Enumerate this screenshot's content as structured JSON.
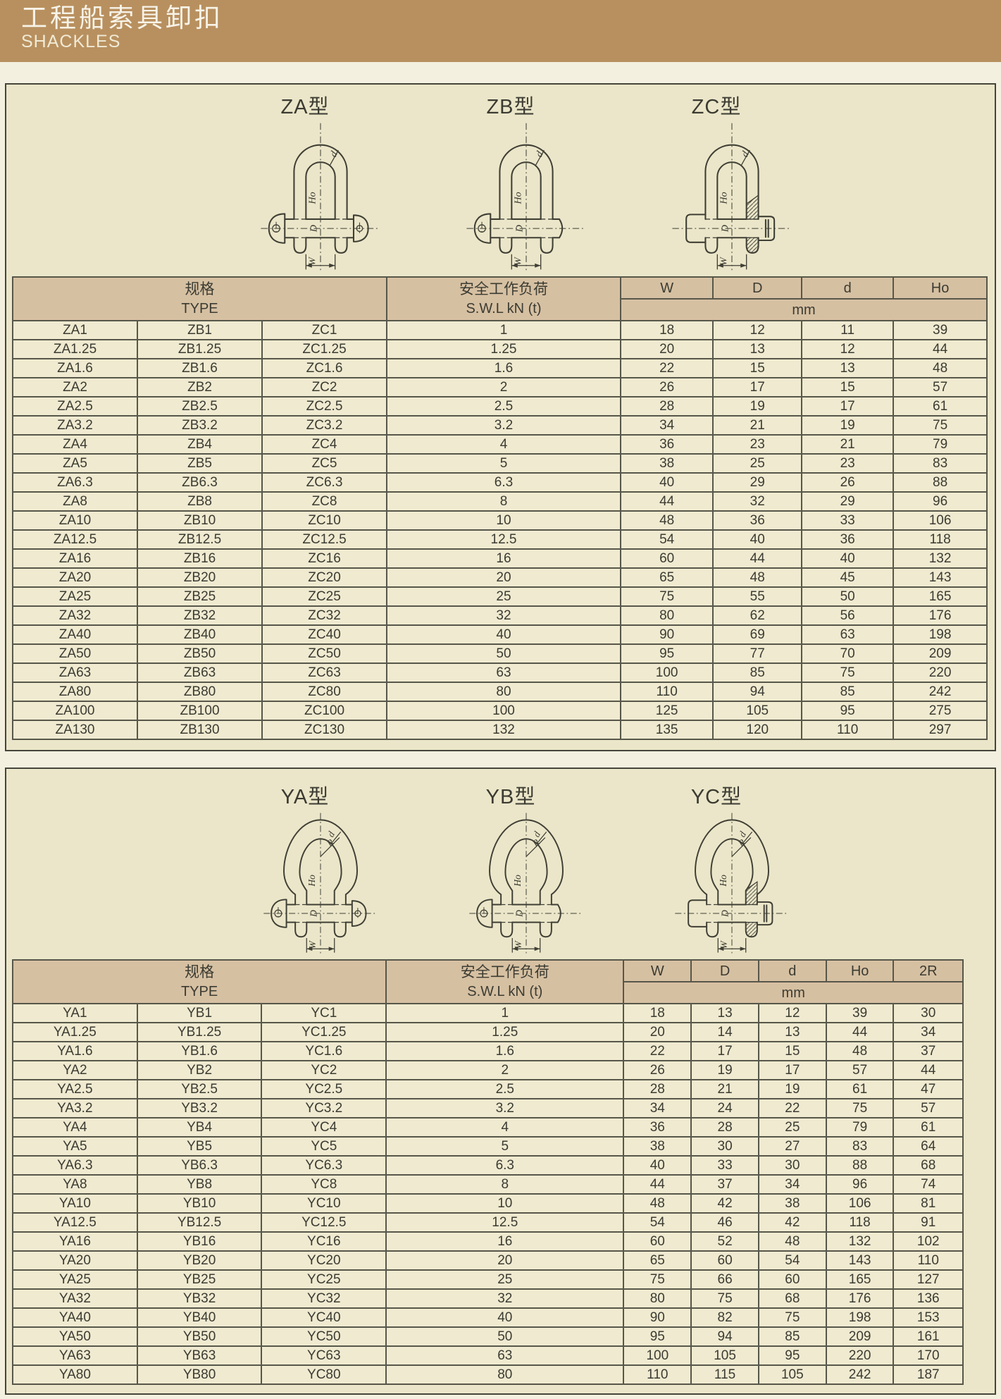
{
  "banner": {
    "title_zh": "工程船索具卸扣",
    "title_en": "SHACKLES"
  },
  "colors": {
    "banner_bg": "#b8905f",
    "panel_bg": "#ebe6c9",
    "table_header_bg": "#d6c0a2",
    "row_bg": "#efead0",
    "grid": "#57574a"
  },
  "section_d": {
    "figures": [
      "ZA型",
      "ZB型",
      "ZC型"
    ],
    "dim_labels": {
      "d": "d",
      "ho": "Ho",
      "pin": "D",
      "width": "W"
    },
    "table": {
      "spec_zh": "规格",
      "spec_en": "TYPE",
      "swl_zh": "安全工作负荷",
      "swl_en": "S.W.L  kN (t)",
      "unit": "mm",
      "dim_cols": [
        "W",
        "D",
        "d",
        "Ho"
      ],
      "rows": [
        [
          "ZA1",
          "ZB1",
          "ZC1",
          "1",
          "18",
          "12",
          "11",
          "39"
        ],
        [
          "ZA1.25",
          "ZB1.25",
          "ZC1.25",
          "1.25",
          "20",
          "13",
          "12",
          "44"
        ],
        [
          "ZA1.6",
          "ZB1.6",
          "ZC1.6",
          "1.6",
          "22",
          "15",
          "13",
          "48"
        ],
        [
          "ZA2",
          "ZB2",
          "ZC2",
          "2",
          "26",
          "17",
          "15",
          "57"
        ],
        [
          "ZA2.5",
          "ZB2.5",
          "ZC2.5",
          "2.5",
          "28",
          "19",
          "17",
          "61"
        ],
        [
          "ZA3.2",
          "ZB3.2",
          "ZC3.2",
          "3.2",
          "34",
          "21",
          "19",
          "75"
        ],
        [
          "ZA4",
          "ZB4",
          "ZC4",
          "4",
          "36",
          "23",
          "21",
          "79"
        ],
        [
          "ZA5",
          "ZB5",
          "ZC5",
          "5",
          "38",
          "25",
          "23",
          "83"
        ],
        [
          "ZA6.3",
          "ZB6.3",
          "ZC6.3",
          "6.3",
          "40",
          "29",
          "26",
          "88"
        ],
        [
          "ZA8",
          "ZB8",
          "ZC8",
          "8",
          "44",
          "32",
          "29",
          "96"
        ],
        [
          "ZA10",
          "ZB10",
          "ZC10",
          "10",
          "48",
          "36",
          "33",
          "106"
        ],
        [
          "ZA12.5",
          "ZB12.5",
          "ZC12.5",
          "12.5",
          "54",
          "40",
          "36",
          "118"
        ],
        [
          "ZA16",
          "ZB16",
          "ZC16",
          "16",
          "60",
          "44",
          "40",
          "132"
        ],
        [
          "ZA20",
          "ZB20",
          "ZC20",
          "20",
          "65",
          "48",
          "45",
          "143"
        ],
        [
          "ZA25",
          "ZB25",
          "ZC25",
          "25",
          "75",
          "55",
          "50",
          "165"
        ],
        [
          "ZA32",
          "ZB32",
          "ZC32",
          "32",
          "80",
          "62",
          "56",
          "176"
        ],
        [
          "ZA40",
          "ZB40",
          "ZC40",
          "40",
          "90",
          "69",
          "63",
          "198"
        ],
        [
          "ZA50",
          "ZB50",
          "ZC50",
          "50",
          "95",
          "77",
          "70",
          "209"
        ],
        [
          "ZA63",
          "ZB63",
          "ZC63",
          "63",
          "100",
          "85",
          "75",
          "220"
        ],
        [
          "ZA80",
          "ZB80",
          "ZC80",
          "80",
          "110",
          "94",
          "85",
          "242"
        ],
        [
          "ZA100",
          "ZB100",
          "ZC100",
          "100",
          "125",
          "105",
          "95",
          "275"
        ],
        [
          "ZA130",
          "ZB130",
          "ZC130",
          "132",
          "135",
          "120",
          "110",
          "297"
        ]
      ]
    }
  },
  "section_bow": {
    "figures": [
      "YA型",
      "YB型",
      "YC型"
    ],
    "dim_labels": {
      "d": "d",
      "ho": "Ho",
      "pin": "D",
      "width": "W",
      "radius": "R"
    },
    "table": {
      "spec_zh": "规格",
      "spec_en": "TYPE",
      "swl_zh": "安全工作负荷",
      "swl_en": "S.W.L  kN (t)",
      "unit": "mm",
      "dim_cols": [
        "W",
        "D",
        "d",
        "Ho",
        "2R"
      ],
      "rows": [
        [
          "YA1",
          "YB1",
          "YC1",
          "1",
          "18",
          "13",
          "12",
          "39",
          "30"
        ],
        [
          "YA1.25",
          "YB1.25",
          "YC1.25",
          "1.25",
          "20",
          "14",
          "13",
          "44",
          "34"
        ],
        [
          "YA1.6",
          "YB1.6",
          "YC1.6",
          "1.6",
          "22",
          "17",
          "15",
          "48",
          "37"
        ],
        [
          "YA2",
          "YB2",
          "YC2",
          "2",
          "26",
          "19",
          "17",
          "57",
          "44"
        ],
        [
          "YA2.5",
          "YB2.5",
          "YC2.5",
          "2.5",
          "28",
          "21",
          "19",
          "61",
          "47"
        ],
        [
          "YA3.2",
          "YB3.2",
          "YC3.2",
          "3.2",
          "34",
          "24",
          "22",
          "75",
          "57"
        ],
        [
          "YA4",
          "YB4",
          "YC4",
          "4",
          "36",
          "28",
          "25",
          "79",
          "61"
        ],
        [
          "YA5",
          "YB5",
          "YC5",
          "5",
          "38",
          "30",
          "27",
          "83",
          "64"
        ],
        [
          "YA6.3",
          "YB6.3",
          "YC6.3",
          "6.3",
          "40",
          "33",
          "30",
          "88",
          "68"
        ],
        [
          "YA8",
          "YB8",
          "YC8",
          "8",
          "44",
          "37",
          "34",
          "96",
          "74"
        ],
        [
          "YA10",
          "YB10",
          "YC10",
          "10",
          "48",
          "42",
          "38",
          "106",
          "81"
        ],
        [
          "YA12.5",
          "YB12.5",
          "YC12.5",
          "12.5",
          "54",
          "46",
          "42",
          "118",
          "91"
        ],
        [
          "YA16",
          "YB16",
          "YC16",
          "16",
          "60",
          "52",
          "48",
          "132",
          "102"
        ],
        [
          "YA20",
          "YB20",
          "YC20",
          "20",
          "65",
          "60",
          "54",
          "143",
          "110"
        ],
        [
          "YA25",
          "YB25",
          "YC25",
          "25",
          "75",
          "66",
          "60",
          "165",
          "127"
        ],
        [
          "YA32",
          "YB32",
          "YC32",
          "32",
          "80",
          "75",
          "68",
          "176",
          "136"
        ],
        [
          "YA40",
          "YB40",
          "YC40",
          "40",
          "90",
          "82",
          "75",
          "198",
          "153"
        ],
        [
          "YA50",
          "YB50",
          "YC50",
          "50",
          "95",
          "94",
          "85",
          "209",
          "161"
        ],
        [
          "YA63",
          "YB63",
          "YC63",
          "63",
          "100",
          "105",
          "95",
          "220",
          "170"
        ],
        [
          "YA80",
          "YB80",
          "YC80",
          "80",
          "110",
          "115",
          "105",
          "242",
          "187"
        ]
      ]
    }
  }
}
